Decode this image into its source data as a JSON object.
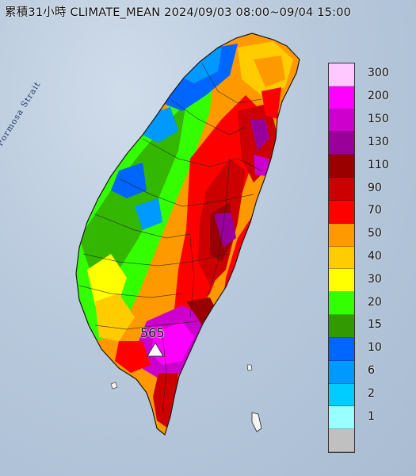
{
  "title": "累積31小時 CLIMATE_MEAN 2024/09/03 08:00~09/04 15:00",
  "sea_label": "Formosa Strait",
  "max_station": {
    "value": "565"
  },
  "legend": [
    {
      "label": "300",
      "color": "#ffc8ff"
    },
    {
      "label": "200",
      "color": "#ff00ff"
    },
    {
      "label": "150",
      "color": "#cc00cc"
    },
    {
      "label": "130",
      "color": "#99009a"
    },
    {
      "label": "110",
      "color": "#990000"
    },
    {
      "label": "90",
      "color": "#cc0000"
    },
    {
      "label": "70",
      "color": "#ff0000"
    },
    {
      "label": "50",
      "color": "#ff9900"
    },
    {
      "label": "40",
      "color": "#ffcc00"
    },
    {
      "label": "30",
      "color": "#ffff00"
    },
    {
      "label": "20",
      "color": "#33ff00"
    },
    {
      "label": "15",
      "color": "#339900"
    },
    {
      "label": "10",
      "color": "#0066ff"
    },
    {
      "label": "6",
      "color": "#0099ff"
    },
    {
      "label": "2",
      "color": "#00ccff"
    },
    {
      "label": "1",
      "color": "#99ffff"
    },
    {
      "label": "",
      "color": "#c0c0c0"
    }
  ]
}
